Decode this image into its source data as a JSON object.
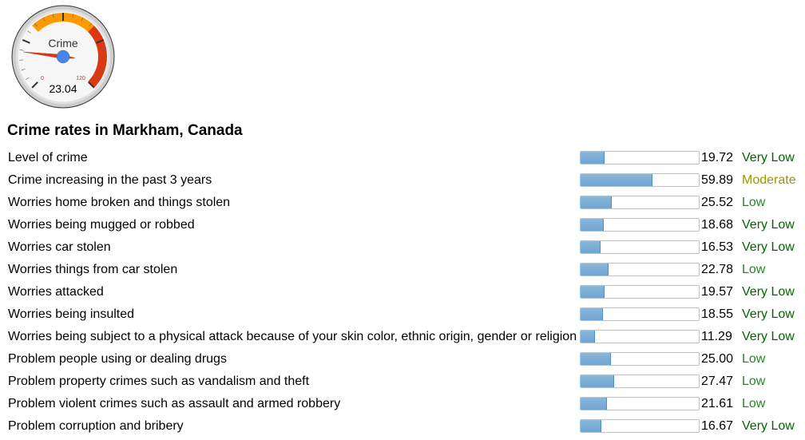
{
  "gauge": {
    "label": "Crime",
    "value": 23.04,
    "value_text": "23.04",
    "min": 0,
    "max": 120,
    "min_label": "0",
    "max_label": "120",
    "bands": [
      {
        "from": 40,
        "to": 80,
        "color": "#ff9900"
      },
      {
        "from": 80,
        "to": 120,
        "color": "#dc3912"
      }
    ]
  },
  "title": "Crime rates in Markham, Canada",
  "rating_colors": {
    "Very Low": "#006600",
    "Low": "#228822",
    "Moderate": "#999900"
  },
  "rows": [
    {
      "label": "Level of crime",
      "value": "19.72",
      "rating": "Very Low"
    },
    {
      "label": "Crime increasing in the past 3 years",
      "value": "59.89",
      "rating": "Moderate"
    },
    {
      "label": "Worries home broken and things stolen",
      "value": "25.52",
      "rating": "Low"
    },
    {
      "label": "Worries being mugged or robbed",
      "value": "18.68",
      "rating": "Very Low"
    },
    {
      "label": "Worries car stolen",
      "value": "16.53",
      "rating": "Very Low"
    },
    {
      "label": "Worries things from car stolen",
      "value": "22.78",
      "rating": "Low"
    },
    {
      "label": "Worries attacked",
      "value": "19.57",
      "rating": "Very Low"
    },
    {
      "label": "Worries being insulted",
      "value": "18.55",
      "rating": "Very Low"
    },
    {
      "label": "Worries being subject to a physical attack because of your skin color, ethnic origin, gender or religion",
      "value": "11.29",
      "rating": "Very Low"
    },
    {
      "label": "Problem people using or dealing drugs",
      "value": "25.00",
      "rating": "Low"
    },
    {
      "label": "Problem property crimes such as vandalism and theft",
      "value": "27.47",
      "rating": "Low"
    },
    {
      "label": "Problem violent crimes such as assault and armed robbery",
      "value": "21.61",
      "rating": "Low"
    },
    {
      "label": "Problem corruption and bribery",
      "value": "16.67",
      "rating": "Very Low"
    }
  ]
}
